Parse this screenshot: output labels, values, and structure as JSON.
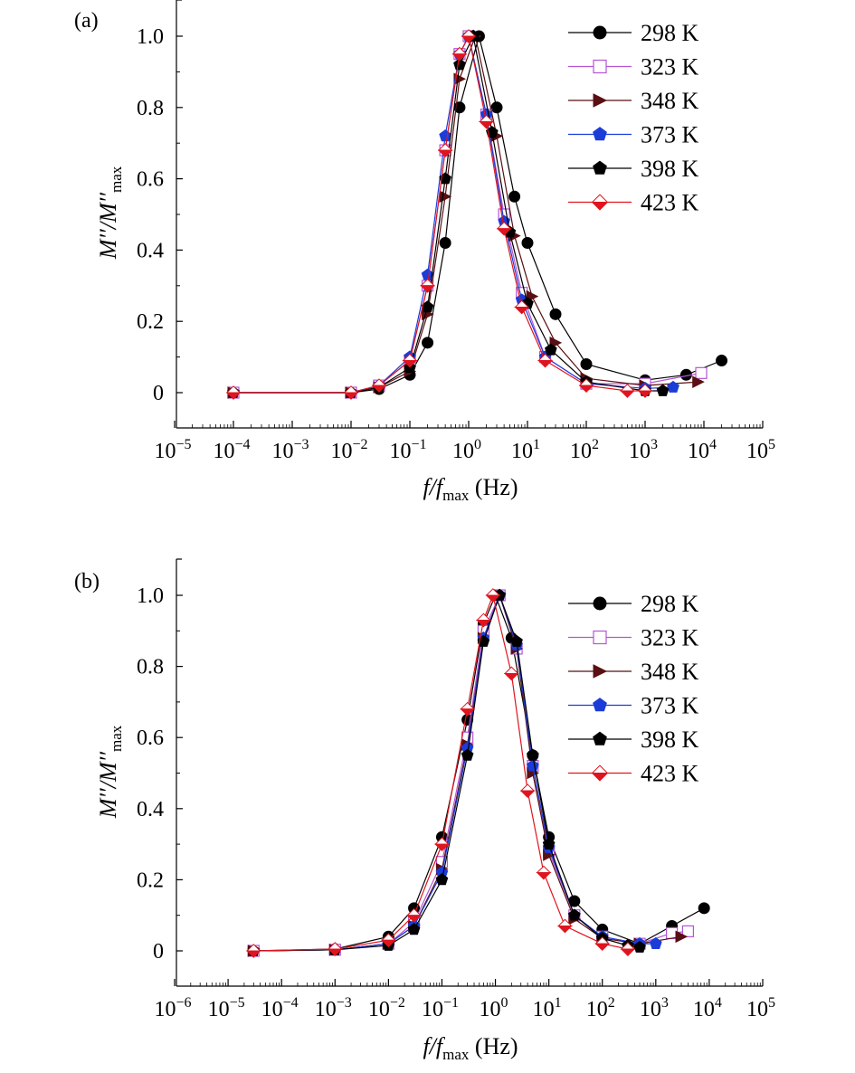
{
  "figure": {
    "xlabel_parts": [
      "f",
      "/",
      "f",
      "max",
      " (Hz)"
    ],
    "ylabel_parts": [
      "M′′",
      "/",
      "M′′",
      "max"
    ],
    "legend_labels": [
      "298 K",
      "323 K",
      "348 K",
      "373 K",
      "398 K",
      "423 K"
    ],
    "y_tick_labels": [
      "0",
      "0.2",
      "0.4",
      "0.6",
      "0.8",
      "1.0"
    ],
    "series_styles": [
      {
        "marker": "circle",
        "fill": "#000000",
        "stroke": "#000000",
        "line": "#000000"
      },
      {
        "marker": "square",
        "fill": "#ffffff",
        "stroke": "#b455d6",
        "line": "#b455d6"
      },
      {
        "marker": "triangle-right",
        "fill": "#5a0f12",
        "stroke": "#5a0f12",
        "line": "#5a0f12"
      },
      {
        "marker": "pentagon",
        "fill": "#1c3cd8",
        "stroke": "#1c3cd8",
        "line": "#1c3cd8"
      },
      {
        "marker": "pentagon",
        "fill": "#000000",
        "stroke": "#000000",
        "line": "#000000"
      },
      {
        "marker": "diamond-half",
        "fill": "#e0141e",
        "stroke": "#e0141e",
        "line": "#e0141e"
      }
    ]
  },
  "chart_data": [
    {
      "type": "scatter",
      "panel_label": "(a)",
      "xscale": "log",
      "xlim_exp": [
        -5,
        5
      ],
      "ylim": [
        -0.1,
        1.1
      ],
      "x_ticks_exp": [
        -5,
        -4,
        -3,
        -2,
        -1,
        0,
        1,
        2,
        3,
        4,
        5
      ],
      "y_ticks": [
        0,
        0.2,
        0.4,
        0.6,
        0.8,
        1.0
      ],
      "legend_position": "top-right",
      "grid": false,
      "series": [
        {
          "name": "298 K",
          "x": [
            0.0001,
            0.01,
            0.03,
            0.1,
            0.2,
            0.4,
            0.7,
            1.5,
            3,
            6,
            10,
            30,
            100,
            1000,
            5000,
            20000
          ],
          "y": [
            0,
            0,
            0.01,
            0.05,
            0.14,
            0.42,
            0.8,
            1.0,
            0.8,
            0.55,
            0.42,
            0.22,
            0.08,
            0.035,
            0.05,
            0.09
          ]
        },
        {
          "name": "323 K",
          "x": [
            0.0001,
            0.01,
            0.03,
            0.1,
            0.2,
            0.4,
            0.7,
            1,
            2,
            4,
            8,
            20,
            100,
            1000,
            9000
          ],
          "y": [
            0,
            0,
            0.02,
            0.09,
            0.3,
            0.68,
            0.95,
            1.0,
            0.78,
            0.5,
            0.28,
            0.1,
            0.025,
            0.025,
            0.055
          ]
        },
        {
          "name": "348 K",
          "x": [
            0.0001,
            0.01,
            0.03,
            0.1,
            0.2,
            0.4,
            0.7,
            1.3,
            3,
            6,
            12,
            30,
            100,
            1000,
            8000
          ],
          "y": [
            0,
            0,
            0.015,
            0.06,
            0.22,
            0.55,
            0.88,
            1.0,
            0.72,
            0.44,
            0.27,
            0.14,
            0.04,
            0.02,
            0.03
          ]
        },
        {
          "name": "373 K",
          "x": [
            0.0001,
            0.01,
            0.03,
            0.1,
            0.2,
            0.4,
            0.7,
            1,
            2,
            4,
            8,
            20,
            100,
            1000,
            3000
          ],
          "y": [
            0,
            0,
            0.02,
            0.1,
            0.33,
            0.72,
            0.95,
            1.0,
            0.78,
            0.48,
            0.26,
            0.1,
            0.025,
            0.012,
            0.015
          ]
        },
        {
          "name": "398 K",
          "x": [
            0.0001,
            0.01,
            0.03,
            0.1,
            0.2,
            0.4,
            0.7,
            1.2,
            2.5,
            5,
            10,
            25,
            100,
            1000,
            2000
          ],
          "y": [
            0,
            0,
            0.015,
            0.07,
            0.24,
            0.6,
            0.92,
            1.0,
            0.73,
            0.45,
            0.25,
            0.12,
            0.03,
            0.005,
            0.005
          ]
        },
        {
          "name": "423 K",
          "x": [
            0.0001,
            0.01,
            0.03,
            0.1,
            0.2,
            0.4,
            0.7,
            1,
            2,
            4,
            8,
            20,
            100,
            500,
            1000
          ],
          "y": [
            0,
            0,
            0.02,
            0.09,
            0.3,
            0.68,
            0.95,
            1.0,
            0.76,
            0.46,
            0.24,
            0.09,
            0.02,
            0.005,
            0.005
          ]
        }
      ]
    },
    {
      "type": "scatter",
      "panel_label": "(b)",
      "xscale": "log",
      "xlim_exp": [
        -6,
        5
      ],
      "ylim": [
        -0.1,
        1.1
      ],
      "x_ticks_exp": [
        -6,
        -5,
        -4,
        -3,
        -2,
        -1,
        0,
        1,
        2,
        3,
        4,
        5
      ],
      "y_ticks": [
        0,
        0.2,
        0.4,
        0.6,
        0.8,
        1.0
      ],
      "legend_position": "top-right",
      "grid": false,
      "series": [
        {
          "name": "298 K",
          "x": [
            3e-05,
            0.001,
            0.01,
            0.03,
            0.1,
            0.3,
            0.6,
            1,
            2,
            5,
            10,
            30,
            100,
            500,
            2000,
            8000
          ],
          "y": [
            0,
            0.005,
            0.04,
            0.12,
            0.32,
            0.65,
            0.92,
            1.0,
            0.88,
            0.55,
            0.32,
            0.14,
            0.06,
            0.02,
            0.07,
            0.12
          ]
        },
        {
          "name": "323 K",
          "x": [
            3e-05,
            0.001,
            0.01,
            0.03,
            0.1,
            0.3,
            0.6,
            1.2,
            2.5,
            5,
            10,
            30,
            100,
            500,
            2000,
            4000
          ],
          "y": [
            0,
            0.003,
            0.02,
            0.08,
            0.25,
            0.6,
            0.9,
            1.0,
            0.85,
            0.52,
            0.28,
            0.1,
            0.04,
            0.02,
            0.05,
            0.055
          ]
        },
        {
          "name": "348 K",
          "x": [
            3e-05,
            0.001,
            0.01,
            0.03,
            0.1,
            0.3,
            0.6,
            1.2,
            2.5,
            5,
            10,
            30,
            100,
            500,
            3000
          ],
          "y": [
            0,
            0.003,
            0.02,
            0.07,
            0.23,
            0.58,
            0.88,
            1.0,
            0.85,
            0.5,
            0.27,
            0.09,
            0.035,
            0.02,
            0.04
          ]
        },
        {
          "name": "373 K",
          "x": [
            3e-05,
            0.001,
            0.01,
            0.03,
            0.1,
            0.3,
            0.6,
            1.2,
            2.5,
            5,
            10,
            30,
            100,
            500,
            1000
          ],
          "y": [
            0,
            0.003,
            0.02,
            0.07,
            0.22,
            0.57,
            0.88,
            1.0,
            0.86,
            0.52,
            0.29,
            0.1,
            0.04,
            0.02,
            0.02
          ]
        },
        {
          "name": "398 K",
          "x": [
            3e-05,
            0.001,
            0.01,
            0.03,
            0.1,
            0.3,
            0.6,
            1.2,
            2.5,
            5,
            10,
            30,
            100,
            300,
            500
          ],
          "y": [
            0,
            0.003,
            0.015,
            0.06,
            0.2,
            0.55,
            0.87,
            1.0,
            0.87,
            0.55,
            0.3,
            0.1,
            0.035,
            0.015,
            0.01
          ]
        },
        {
          "name": "423 K",
          "x": [
            3e-05,
            0.001,
            0.01,
            0.03,
            0.1,
            0.3,
            0.6,
            0.9,
            2,
            4,
            8,
            20,
            100,
            300
          ],
          "y": [
            0,
            0.005,
            0.03,
            0.1,
            0.3,
            0.68,
            0.93,
            1.0,
            0.78,
            0.45,
            0.22,
            0.07,
            0.02,
            0.005
          ]
        }
      ]
    }
  ]
}
